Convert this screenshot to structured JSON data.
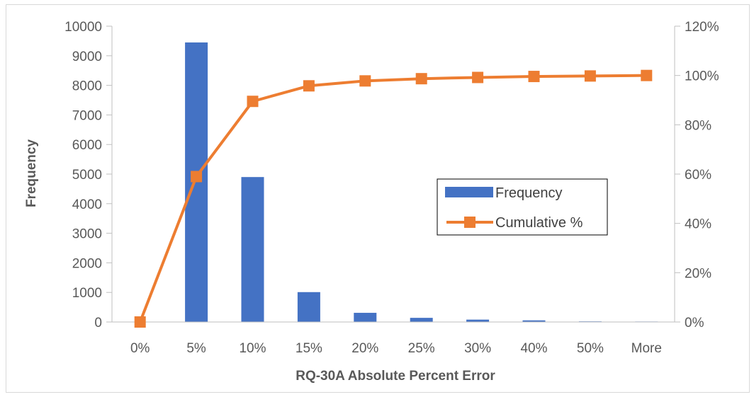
{
  "chart_data": {
    "type": "bar",
    "title": "",
    "xlabel": "RQ-30A Absolute Percent Error",
    "ylabel": "Frequency",
    "ylabel_right": "",
    "categories": [
      "0%",
      "5%",
      "10%",
      "15%",
      "20%",
      "25%",
      "30%",
      "40%",
      "50%",
      "More"
    ],
    "ylim": [
      0,
      10000
    ],
    "y_ticks": [
      "0",
      "1000",
      "2000",
      "3000",
      "4000",
      "5000",
      "6000",
      "7000",
      "8000",
      "9000",
      "10000"
    ],
    "y2lim": [
      0,
      1.2
    ],
    "y2_ticks": [
      "0%",
      "20%",
      "40%",
      "60%",
      "80%",
      "100%",
      "120%"
    ],
    "grid": false,
    "legend_position": "right-center",
    "series": [
      {
        "name": "Frequency",
        "type": "bar",
        "axis": "left",
        "color": "#4472C4",
        "values": [
          0,
          9450,
          4900,
          1010,
          310,
          140,
          80,
          55,
          20,
          15
        ]
      },
      {
        "name": "Cumulative %",
        "type": "line",
        "axis": "right",
        "marker": "square",
        "color": "#ED7D31",
        "values": [
          0.0,
          0.59,
          0.895,
          0.958,
          0.978,
          0.987,
          0.992,
          0.996,
          0.998,
          1.0
        ]
      }
    ]
  }
}
